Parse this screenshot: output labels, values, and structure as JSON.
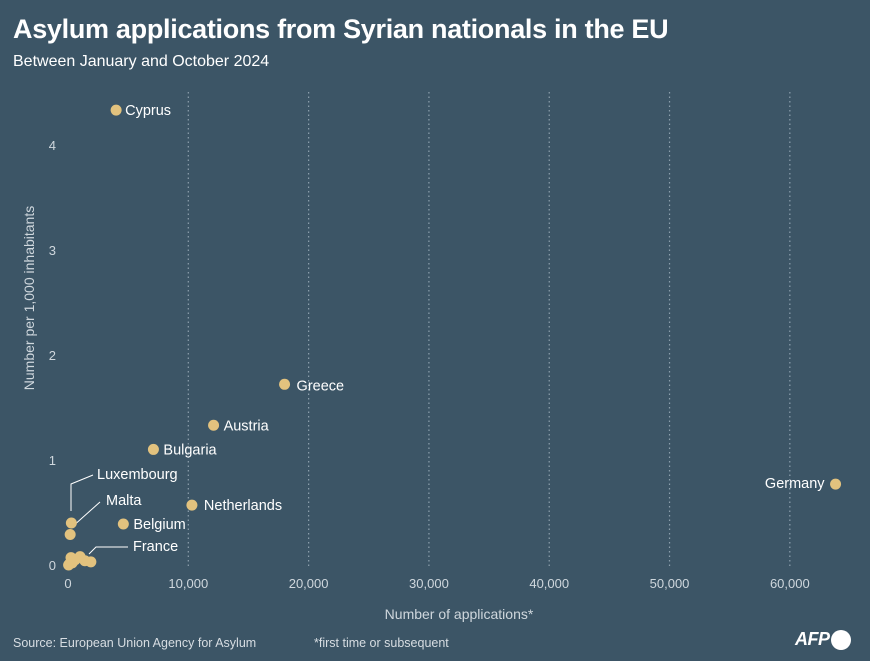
{
  "header": {
    "title": "Asylum applications from Syrian nationals in the EU",
    "subtitle": "Between January and October 2024"
  },
  "footer": {
    "source": "Source: European Union Agency for Asylum",
    "footnote": "*first time or subsequent",
    "logo": "AFP"
  },
  "colors": {
    "background": "#3c5566",
    "point": "#e2c27e",
    "text": "#ffffff",
    "axis_text": "#cfd7dd",
    "grid": "#8da0ad"
  },
  "chart_data": {
    "type": "scatter",
    "xlabel": "Number of applications*",
    "ylabel": "Number per 1,000 inhabitants",
    "xlim": [
      0,
      65000
    ],
    "ylim": [
      0,
      4.35
    ],
    "grid": "vertical dotted",
    "x_ticks": [
      0,
      10000,
      20000,
      30000,
      40000,
      50000,
      60000
    ],
    "x_tick_labels": [
      "0",
      "10,000",
      "20,000",
      "30,000",
      "40,000",
      "50,000",
      "60,000"
    ],
    "y_ticks": [
      0,
      1,
      2,
      3,
      4
    ],
    "y_tick_labels": [
      "0",
      "1",
      "2",
      "3",
      "4"
    ],
    "points": [
      {
        "label": "Cyprus",
        "x": 4000,
        "y": 4.33
      },
      {
        "label": "Greece",
        "x": 18000,
        "y": 1.72
      },
      {
        "label": "Austria",
        "x": 12100,
        "y": 1.33
      },
      {
        "label": "Bulgaria",
        "x": 7100,
        "y": 1.1
      },
      {
        "label": "Germany",
        "x": 63800,
        "y": 0.77
      },
      {
        "label": "Netherlands",
        "x": 10300,
        "y": 0.57
      },
      {
        "label": "Belgium",
        "x": 4600,
        "y": 0.39
      },
      {
        "label": "Luxembourg",
        "x": 280,
        "y": 0.4
      },
      {
        "label": "Malta",
        "x": 180,
        "y": 0.29
      },
      {
        "label": "France",
        "x": 1900,
        "y": 0.03
      },
      {
        "label": "",
        "x": 1000,
        "y": 0.08
      },
      {
        "label": "",
        "x": 600,
        "y": 0.05
      },
      {
        "label": "",
        "x": 250,
        "y": 0.07
      },
      {
        "label": "",
        "x": 350,
        "y": 0.02
      },
      {
        "label": "",
        "x": 120,
        "y": 0.01
      },
      {
        "label": "",
        "x": 1400,
        "y": 0.04
      },
      {
        "label": "",
        "x": 50,
        "y": 0.0
      }
    ]
  }
}
